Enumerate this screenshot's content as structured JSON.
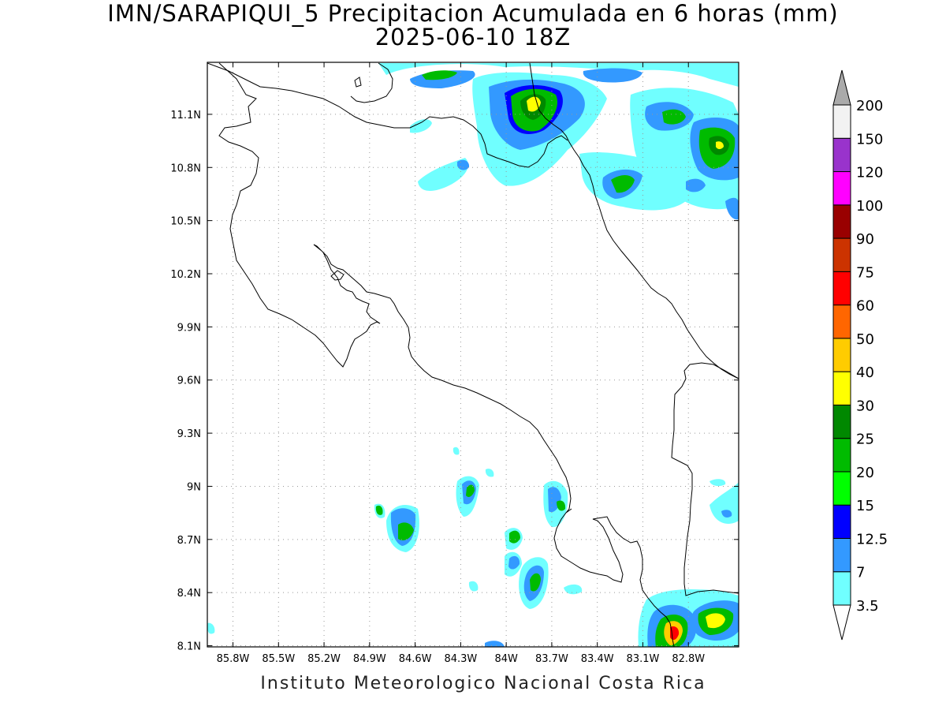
{
  "title": {
    "line1": "IMN/SARAPIQUI_5 Precipitacion Acumulada en 6 horas (mm)",
    "line2": "2025-06-10 18Z"
  },
  "footer": "Instituto Meteorologico Nacional Costa Rica",
  "axes": {
    "x_ticks": [
      "85.8W",
      "85.5W",
      "85.2W",
      "84.9W",
      "84.6W",
      "84.3W",
      "84W",
      "83.7W",
      "83.4W",
      "83.1W",
      "82.8W"
    ],
    "y_ticks": [
      "11.1N",
      "10.8N",
      "10.5N",
      "10.2N",
      "9.9N",
      "9.6N",
      "9.3N",
      "9N",
      "8.7N",
      "8.4N",
      "8.1N"
    ],
    "x_values": [
      -85.8,
      -85.5,
      -85.2,
      -84.9,
      -84.6,
      -84.3,
      -84.0,
      -83.7,
      -83.4,
      -83.1,
      -82.8
    ],
    "y_values": [
      11.1,
      10.8,
      10.5,
      10.2,
      9.9,
      9.6,
      9.3,
      9.0,
      8.7,
      8.4,
      8.1
    ],
    "grid": "dotted"
  },
  "colorbar": {
    "labels": [
      "3.5",
      "7",
      "12.5",
      "15",
      "20",
      "25",
      "30",
      "40",
      "50",
      "60",
      "75",
      "90",
      "100",
      "120",
      "150",
      "200"
    ],
    "colors": [
      "#70ffff",
      "#3399ff",
      "#0000ff",
      "#00ff00",
      "#00bb00",
      "#008800",
      "#ffff00",
      "#ffcc00",
      "#ff6600",
      "#ff0000",
      "#cc3300",
      "#990000",
      "#ff00ff",
      "#9933cc",
      "#f2f2f2"
    ],
    "top_triangle": "#aaaaaa",
    "bottom_triangle": "#ffffff"
  }
}
